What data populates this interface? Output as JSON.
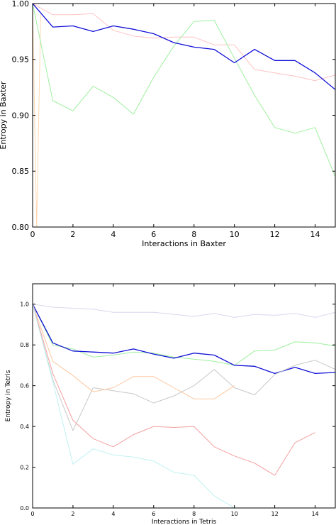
{
  "chart_data": [
    {
      "type": "line",
      "xlabel": "Interactions in Baxter",
      "ylabel": "Entropy in Baxter",
      "xlim": [
        0,
        15
      ],
      "ylim": [
        0.8,
        1.0
      ],
      "xticks": [
        0,
        2,
        4,
        6,
        8,
        10,
        12,
        14
      ],
      "xtick_labels": [
        "0",
        "2",
        "4",
        "6",
        "8",
        "10",
        "12",
        "14"
      ],
      "yticks": [
        0.8,
        0.85,
        0.9,
        0.95,
        1.0
      ],
      "ytick_labels": [
        "0.80",
        "0.85",
        "0.90",
        "0.95",
        "1.00"
      ],
      "grid": false,
      "series": [
        {
          "color": "#ffd8b0",
          "x": [
            0,
            0.2,
            0.4
          ],
          "y": [
            1.0,
            0.8,
            0.99
          ]
        },
        {
          "color": "#ffc2c2",
          "x": [
            0,
            1,
            2,
            3,
            4,
            5,
            6,
            7,
            8,
            9,
            10,
            11,
            12,
            13,
            14,
            15
          ],
          "y": [
            1.0,
            0.99,
            0.99,
            0.991,
            0.976,
            0.971,
            0.969,
            0.97,
            0.97,
            0.963,
            0.963,
            0.941,
            0.938,
            0.935,
            0.931,
            0.936
          ]
        },
        {
          "color": "#9ef09e",
          "x": [
            0,
            1,
            2,
            3,
            4,
            5,
            6,
            7,
            8,
            9,
            10,
            11,
            12,
            13,
            14,
            15
          ],
          "y": [
            1.0,
            0.913,
            0.904,
            0.926,
            0.916,
            0.901,
            0.934,
            0.962,
            0.984,
            0.985,
            0.951,
            0.918,
            0.889,
            0.884,
            0.889,
            0.845
          ]
        },
        {
          "color": "#1010d8",
          "x": [
            0,
            1,
            2,
            3,
            4,
            5,
            6,
            7,
            8,
            9,
            10,
            11,
            12,
            13,
            14,
            15
          ],
          "y": [
            1.0,
            0.979,
            0.98,
            0.975,
            0.98,
            0.977,
            0.973,
            0.965,
            0.961,
            0.959,
            0.947,
            0.959,
            0.949,
            0.949,
            0.938,
            0.923
          ]
        }
      ]
    },
    {
      "type": "line",
      "xlabel": "Interactions in Tetris",
      "ylabel": "Entropy in Tetris",
      "xlim": [
        0,
        15
      ],
      "ylim": [
        0.0,
        1.1
      ],
      "xticks": [
        0,
        2,
        4,
        6,
        8,
        10,
        12,
        14
      ],
      "xtick_labels": [
        "0",
        "2",
        "4",
        "6",
        "8",
        "10",
        "12",
        "14"
      ],
      "yticks": [
        0.0,
        0.2,
        0.4,
        0.6,
        0.8,
        1.0
      ],
      "ytick_labels": [
        "0.0",
        "0.2",
        "0.4",
        "0.6",
        "0.8",
        "1.0"
      ],
      "grid": false,
      "series": [
        {
          "color": "#d8d8ee",
          "x": [
            0,
            1,
            2,
            3,
            4,
            5,
            6,
            7,
            8,
            9,
            10,
            11,
            12,
            13,
            14,
            15
          ],
          "y": [
            1.0,
            0.985,
            0.98,
            0.975,
            0.96,
            0.96,
            0.96,
            0.95,
            0.94,
            0.955,
            0.935,
            0.95,
            0.945,
            0.955,
            0.935,
            0.96
          ]
        },
        {
          "color": "#9ef09e",
          "x": [
            0,
            1,
            2,
            3,
            4,
            5,
            6,
            7,
            8,
            9,
            10,
            11,
            12,
            13,
            14,
            15
          ],
          "y": [
            1.0,
            0.8,
            0.78,
            0.74,
            0.75,
            0.765,
            0.76,
            0.74,
            0.73,
            0.72,
            0.7,
            0.77,
            0.775,
            0.815,
            0.81,
            0.795
          ]
        },
        {
          "color": "#1010d8",
          "x": [
            0,
            1,
            2,
            3,
            4,
            5,
            6,
            7,
            8,
            9,
            10,
            11,
            12,
            13,
            14,
            15
          ],
          "y": [
            1.0,
            0.81,
            0.77,
            0.765,
            0.76,
            0.78,
            0.755,
            0.735,
            0.76,
            0.75,
            0.7,
            0.695,
            0.66,
            0.69,
            0.66,
            0.665
          ]
        },
        {
          "color": "#c8c8c8",
          "x": [
            0,
            1,
            2,
            3,
            4,
            5,
            6,
            7,
            8,
            9,
            10,
            11,
            12,
            13,
            14,
            15
          ],
          "y": [
            1.0,
            0.63,
            0.38,
            0.59,
            0.575,
            0.56,
            0.515,
            0.55,
            0.6,
            0.68,
            0.59,
            0.555,
            0.655,
            0.7,
            0.725,
            0.68
          ]
        },
        {
          "color": "#ffc8a0",
          "x": [
            0,
            1,
            2,
            3,
            4,
            5,
            6,
            7,
            8,
            9,
            10
          ],
          "y": [
            1.0,
            0.72,
            0.65,
            0.57,
            0.59,
            0.645,
            0.645,
            0.59,
            0.535,
            0.535,
            0.6
          ]
        },
        {
          "color": "#f4a0a0",
          "x": [
            0,
            1,
            2,
            3,
            4,
            5,
            6,
            7,
            8,
            9,
            10,
            11,
            12,
            13,
            14
          ],
          "y": [
            1.0,
            0.66,
            0.43,
            0.34,
            0.3,
            0.36,
            0.4,
            0.395,
            0.4,
            0.3,
            0.255,
            0.22,
            0.16,
            0.32,
            0.37
          ]
        },
        {
          "color": "#bff2f2",
          "x": [
            0,
            1,
            2,
            3,
            4,
            5,
            6,
            7,
            8,
            9,
            10
          ],
          "y": [
            1.0,
            0.62,
            0.215,
            0.29,
            0.26,
            0.25,
            0.23,
            0.175,
            0.16,
            0.06,
            0.0
          ]
        }
      ]
    }
  ]
}
